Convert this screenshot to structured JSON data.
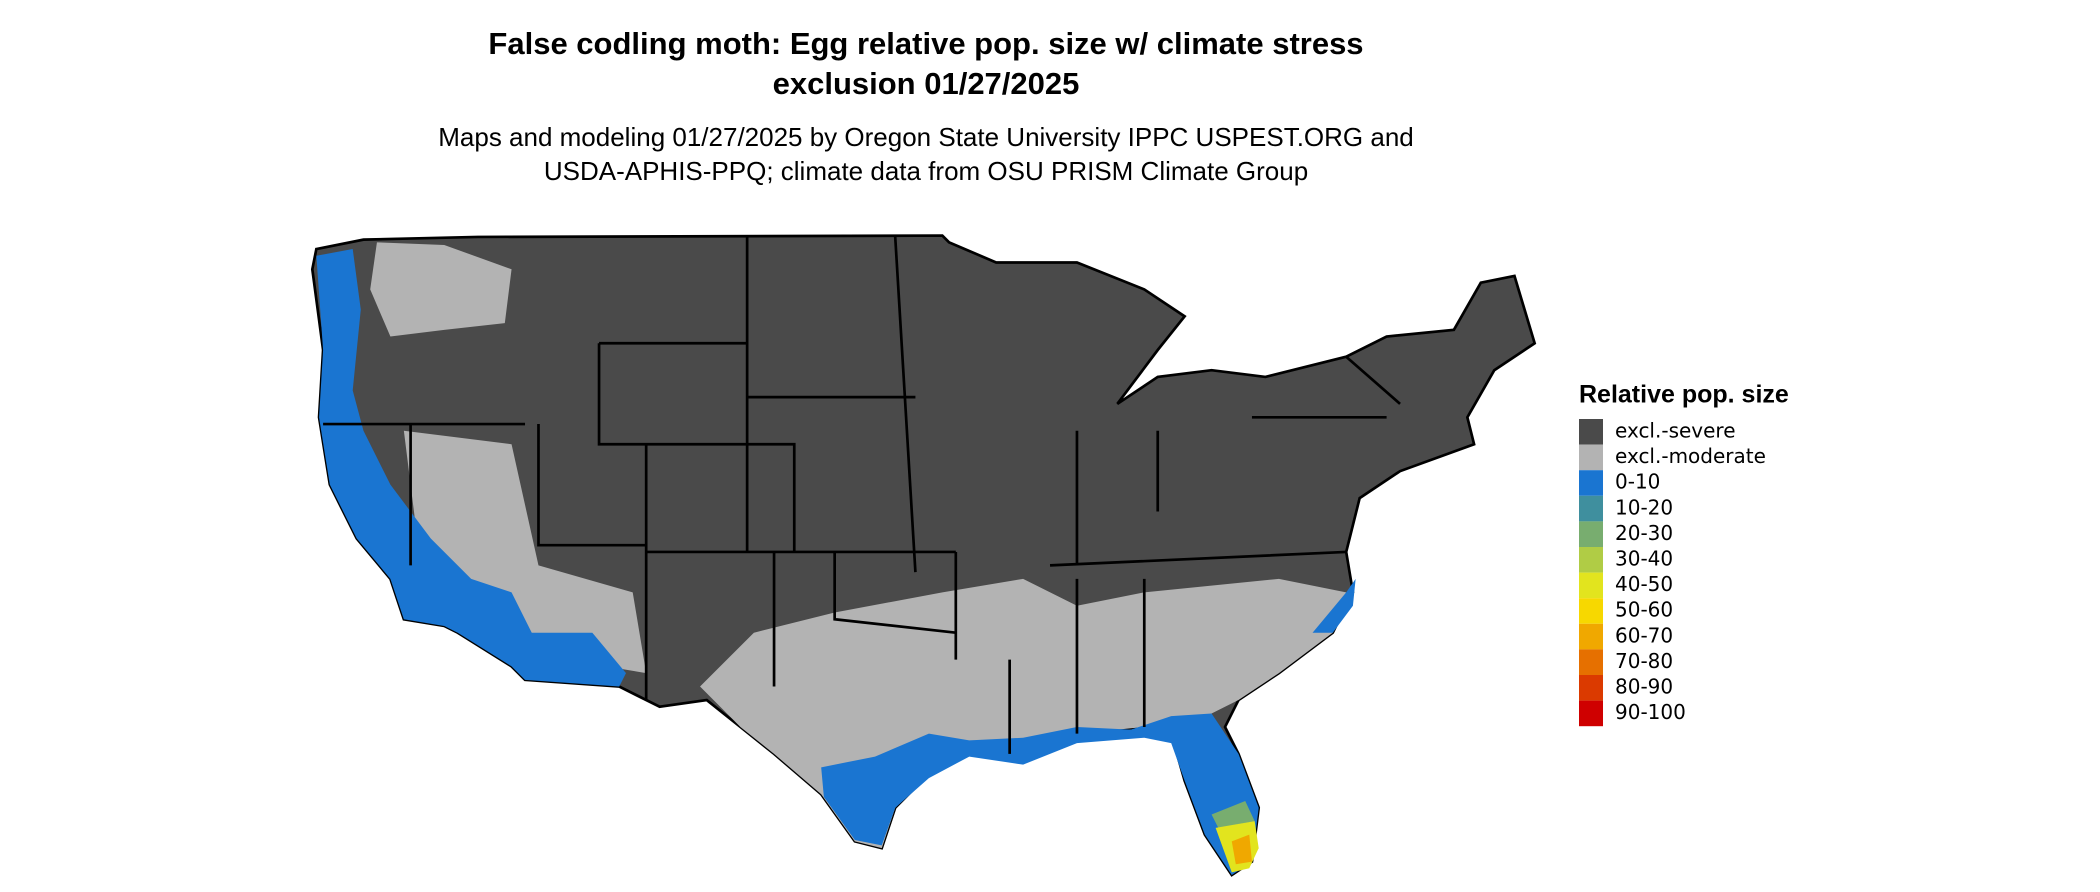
{
  "header": {
    "title_lines": [
      "False codling moth: Egg relative pop. size w/ climate stress",
      "exclusion 01/27/2025"
    ],
    "subtitle_lines": [
      "Maps and modeling 01/27/2025 by Oregon State University IPPC USPEST.ORG and",
      "USDA-APHIS-PPQ; climate data from OSU PRISM Climate Group"
    ]
  },
  "legend": {
    "title": "Relative pop. size",
    "items": [
      {
        "label": "excl.-severe",
        "color": "#4a4a4a"
      },
      {
        "label": "excl.-moderate",
        "color": "#b3b3b3"
      },
      {
        "label": "0-10",
        "color": "#1a75d1"
      },
      {
        "label": "10-20",
        "color": "#3f8f9e"
      },
      {
        "label": "20-30",
        "color": "#78ad6f"
      },
      {
        "label": "30-40",
        "color": "#b0cc45"
      },
      {
        "label": "40-50",
        "color": "#e2e41e"
      },
      {
        "label": "50-60",
        "color": "#f7d800"
      },
      {
        "label": "60-70",
        "color": "#f0a800"
      },
      {
        "label": "70-80",
        "color": "#e67000"
      },
      {
        "label": "80-90",
        "color": "#db3a00"
      },
      {
        "label": "90-100",
        "color": "#cf0000"
      }
    ]
  }
}
